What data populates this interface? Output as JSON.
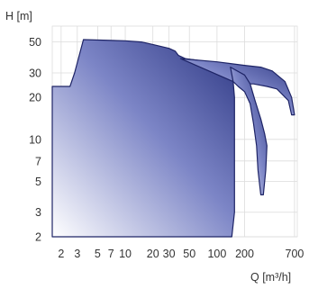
{
  "chart_data": {
    "type": "area",
    "title": "",
    "ylabel": "H [m]",
    "xlabel": "Q [m³/h]",
    "x_scale": "log",
    "y_scale": "log",
    "xlim": [
      1.6,
      750
    ],
    "ylim": [
      2,
      65
    ],
    "grid": true,
    "legend": "none",
    "x_ticks": [
      2,
      3,
      5,
      7,
      10,
      20,
      30,
      50,
      100,
      200,
      700
    ],
    "x_tick_labels": [
      "2",
      "3",
      "5",
      "7",
      "10",
      "20",
      "30",
      "50",
      "100",
      "200",
      "700"
    ],
    "y_ticks": [
      2,
      3,
      5,
      7,
      10,
      20,
      30,
      50
    ],
    "y_tick_labels": [
      "2",
      "3",
      "5",
      "7",
      "10",
      "20",
      "30",
      "50"
    ],
    "colors": {
      "fill_dark": "#2e3884",
      "fill_light": "#ffffff",
      "outline": "#1e2466"
    },
    "series": [
      {
        "region": "main-envelope",
        "points": [
          [
            1.6,
            2
          ],
          [
            1.6,
            24
          ],
          [
            2.5,
            24
          ],
          [
            2.8,
            30
          ],
          [
            3.5,
            52
          ],
          [
            10,
            51
          ],
          [
            15,
            50
          ],
          [
            20,
            48
          ],
          [
            30,
            45
          ],
          [
            35,
            43
          ],
          [
            38,
            40
          ],
          [
            45,
            38
          ],
          [
            60,
            37
          ],
          [
            100,
            35
          ],
          [
            140,
            33
          ],
          [
            150,
            26
          ],
          [
            155,
            20
          ],
          [
            155,
            10
          ],
          [
            155,
            5
          ],
          [
            155,
            3
          ],
          [
            145,
            2
          ]
        ]
      },
      {
        "region": "upper-lobe",
        "points": [
          [
            40,
            38
          ],
          [
            100,
            36
          ],
          [
            200,
            34
          ],
          [
            300,
            33
          ],
          [
            400,
            31
          ],
          [
            550,
            26
          ],
          [
            650,
            20
          ],
          [
            700,
            15
          ],
          [
            650,
            15
          ],
          [
            600,
            19
          ],
          [
            450,
            23
          ],
          [
            350,
            24
          ],
          [
            250,
            25
          ],
          [
            180,
            25
          ],
          [
            150,
            26
          ]
        ]
      },
      {
        "region": "lower-lobe",
        "points": [
          [
            140,
            33
          ],
          [
            200,
            29
          ],
          [
            230,
            25
          ],
          [
            260,
            19
          ],
          [
            300,
            14
          ],
          [
            330,
            11
          ],
          [
            350,
            9
          ],
          [
            340,
            6
          ],
          [
            320,
            4
          ],
          [
            300,
            4
          ],
          [
            280,
            6
          ],
          [
            270,
            9
          ],
          [
            250,
            13
          ],
          [
            230,
            18
          ],
          [
            200,
            22
          ],
          [
            170,
            24
          ],
          [
            150,
            26
          ]
        ]
      }
    ]
  }
}
